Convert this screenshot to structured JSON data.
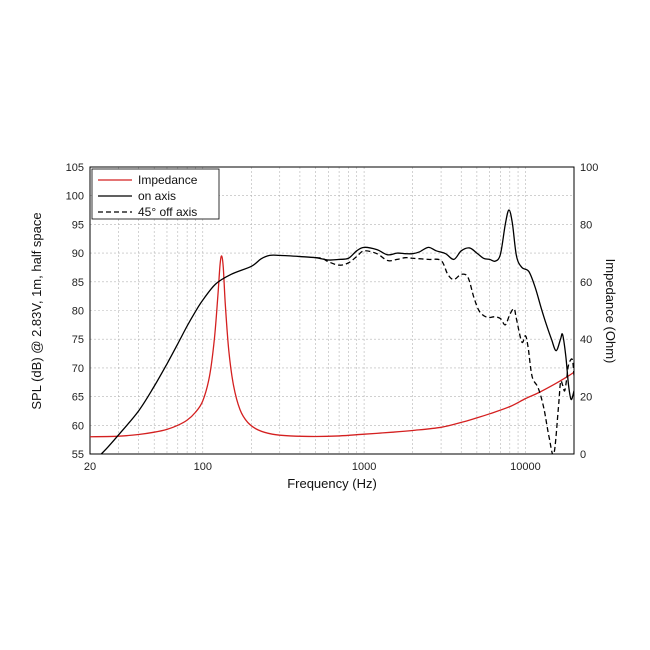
{
  "chart_data": {
    "type": "line",
    "xlabel": "Frequency (Hz)",
    "ylabel": "SPL (dB) @ 2.83V, 1m, half space",
    "y2label": "Impedance (Ohm)",
    "xscale": "log",
    "xlim": [
      20,
      20000
    ],
    "ylim": [
      55,
      105
    ],
    "y2lim": [
      0,
      100
    ],
    "x_tick_labels": [
      "20",
      "100",
      "1000",
      "10000"
    ],
    "x_tick_values": [
      20,
      100,
      1000,
      10000
    ],
    "y_tick_labels": [
      "55",
      "60",
      "65",
      "70",
      "75",
      "80",
      "85",
      "90",
      "95",
      "100",
      "105"
    ],
    "y_tick_values": [
      55,
      60,
      65,
      70,
      75,
      80,
      85,
      90,
      95,
      100,
      105
    ],
    "y2_tick_labels": [
      "0",
      "20",
      "40",
      "60",
      "80",
      "100"
    ],
    "y2_tick_values": [
      0,
      20,
      40,
      60,
      80,
      100
    ],
    "grid": true,
    "legend_position": "top-left",
    "series": [
      {
        "name": "Impedance",
        "axis": "right",
        "color": "#d42020",
        "dash": "solid",
        "points": [
          [
            20,
            6
          ],
          [
            30,
            6.2
          ],
          [
            40,
            6.8
          ],
          [
            50,
            7.6
          ],
          [
            60,
            8.6
          ],
          [
            70,
            10
          ],
          [
            80,
            11.8
          ],
          [
            90,
            14.5
          ],
          [
            100,
            18.5
          ],
          [
            110,
            27
          ],
          [
            118,
            40
          ],
          [
            124,
            55
          ],
          [
            128,
            66
          ],
          [
            131,
            69
          ],
          [
            134,
            65
          ],
          [
            138,
            52
          ],
          [
            145,
            36
          ],
          [
            155,
            24
          ],
          [
            170,
            15.5
          ],
          [
            190,
            11
          ],
          [
            220,
            8.4
          ],
          [
            270,
            6.9
          ],
          [
            350,
            6.3
          ],
          [
            500,
            6.1
          ],
          [
            700,
            6.3
          ],
          [
            1000,
            6.9
          ],
          [
            1500,
            7.6
          ],
          [
            2000,
            8.2
          ],
          [
            3000,
            9.3
          ],
          [
            4000,
            11
          ],
          [
            5000,
            12.6
          ],
          [
            6000,
            14
          ],
          [
            8000,
            16.5
          ],
          [
            10000,
            19.3
          ],
          [
            12000,
            21.3
          ],
          [
            15000,
            24.2
          ],
          [
            18000,
            26.8
          ],
          [
            20000,
            28.5
          ]
        ]
      },
      {
        "name": "on axis",
        "axis": "left",
        "color": "#000000",
        "dash": "solid",
        "points": [
          [
            23.5,
            55
          ],
          [
            26,
            56.3
          ],
          [
            30,
            58.3
          ],
          [
            40,
            62.5
          ],
          [
            50,
            66.8
          ],
          [
            60,
            70.7
          ],
          [
            70,
            74.2
          ],
          [
            80,
            77.3
          ],
          [
            90,
            79.8
          ],
          [
            100,
            81.8
          ],
          [
            120,
            84.6
          ],
          [
            150,
            86.3
          ],
          [
            200,
            87.7
          ],
          [
            230,
            89
          ],
          [
            260,
            89.6
          ],
          [
            300,
            89.6
          ],
          [
            400,
            89.4
          ],
          [
            500,
            89.2
          ],
          [
            600,
            88.8
          ],
          [
            700,
            88.9
          ],
          [
            800,
            89.1
          ],
          [
            900,
            90.4
          ],
          [
            1000,
            91
          ],
          [
            1200,
            90.6
          ],
          [
            1400,
            89.7
          ],
          [
            1600,
            90
          ],
          [
            1800,
            89.9
          ],
          [
            2000,
            89.9
          ],
          [
            2200,
            90.2
          ],
          [
            2500,
            91
          ],
          [
            2800,
            90.4
          ],
          [
            3200,
            89.9
          ],
          [
            3600,
            88.9
          ],
          [
            4000,
            90.4
          ],
          [
            4500,
            90.9
          ],
          [
            5000,
            90
          ],
          [
            5500,
            89.1
          ],
          [
            6000,
            88.9
          ],
          [
            6500,
            88.6
          ],
          [
            7000,
            89.8
          ],
          [
            7500,
            95
          ],
          [
            7900,
            97.5
          ],
          [
            8300,
            95.2
          ],
          [
            8800,
            89.5
          ],
          [
            9500,
            87.5
          ],
          [
            10500,
            86.8
          ],
          [
            11500,
            84
          ],
          [
            12500,
            80.5
          ],
          [
            13500,
            77.5
          ],
          [
            14500,
            75
          ],
          [
            15500,
            73
          ],
          [
            16500,
            75
          ],
          [
            17000,
            75.8
          ],
          [
            17800,
            72
          ],
          [
            18500,
            67
          ],
          [
            19200,
            64.5
          ],
          [
            20000,
            66
          ]
        ]
      },
      {
        "name": "45° off axis",
        "axis": "left",
        "color": "#000000",
        "dash": "dashed",
        "points": [
          [
            500,
            89.2
          ],
          [
            550,
            89.1
          ],
          [
            600,
            88.5
          ],
          [
            700,
            87.9
          ],
          [
            800,
            88.3
          ],
          [
            900,
            89.4
          ],
          [
            1000,
            90.4
          ],
          [
            1200,
            89.9
          ],
          [
            1400,
            88.7
          ],
          [
            1600,
            88.9
          ],
          [
            1800,
            89.2
          ],
          [
            2000,
            89.1
          ],
          [
            2500,
            88.9
          ],
          [
            3000,
            88.7
          ],
          [
            3300,
            86.3
          ],
          [
            3600,
            85.4
          ],
          [
            4000,
            86.3
          ],
          [
            4400,
            85.8
          ],
          [
            4800,
            82.2
          ],
          [
            5200,
            79.8
          ],
          [
            5800,
            78.8
          ],
          [
            6400,
            78.9
          ],
          [
            7000,
            78.6
          ],
          [
            7500,
            77.5
          ],
          [
            8000,
            79.3
          ],
          [
            8500,
            80.3
          ],
          [
            8800,
            78.5
          ],
          [
            9500,
            74.5
          ],
          [
            10000,
            75.6
          ],
          [
            10400,
            73.5
          ],
          [
            11000,
            68.5
          ],
          [
            12000,
            66.5
          ],
          [
            13000,
            63
          ],
          [
            14000,
            58
          ],
          [
            15000,
            55
          ],
          [
            16000,
            63
          ],
          [
            16500,
            67.5
          ],
          [
            17000,
            67
          ],
          [
            17500,
            66
          ],
          [
            18000,
            68
          ],
          [
            18500,
            70.5
          ],
          [
            19500,
            71.5
          ],
          [
            20000,
            68.7
          ]
        ]
      }
    ]
  }
}
